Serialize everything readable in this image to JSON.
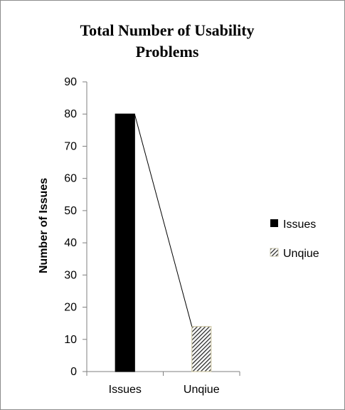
{
  "chart_data": {
    "type": "bar",
    "title_line1": "Total Number of Usability",
    "title_line2": "Problems",
    "ylabel": "Number of Issues",
    "xlabel": "",
    "categories": [
      "Issues",
      "Unqiue"
    ],
    "series": [
      {
        "name": "Issues",
        "values": [
          80,
          null
        ]
      },
      {
        "name": "Unqiue",
        "values": [
          null,
          14
        ]
      }
    ],
    "values": [
      80,
      14
    ],
    "ylim": [
      0,
      90
    ],
    "yticks": [
      "0",
      "10",
      "20",
      "30",
      "40",
      "50",
      "60",
      "70",
      "80",
      "90"
    ],
    "legend": [
      "Issues",
      "Unqiue"
    ],
    "legend_position": "right",
    "grid": false,
    "connector_line": true,
    "colors": {
      "issues": "#000000",
      "unique_fill": "#3a3a3a",
      "unique_pattern": "hatched"
    }
  }
}
